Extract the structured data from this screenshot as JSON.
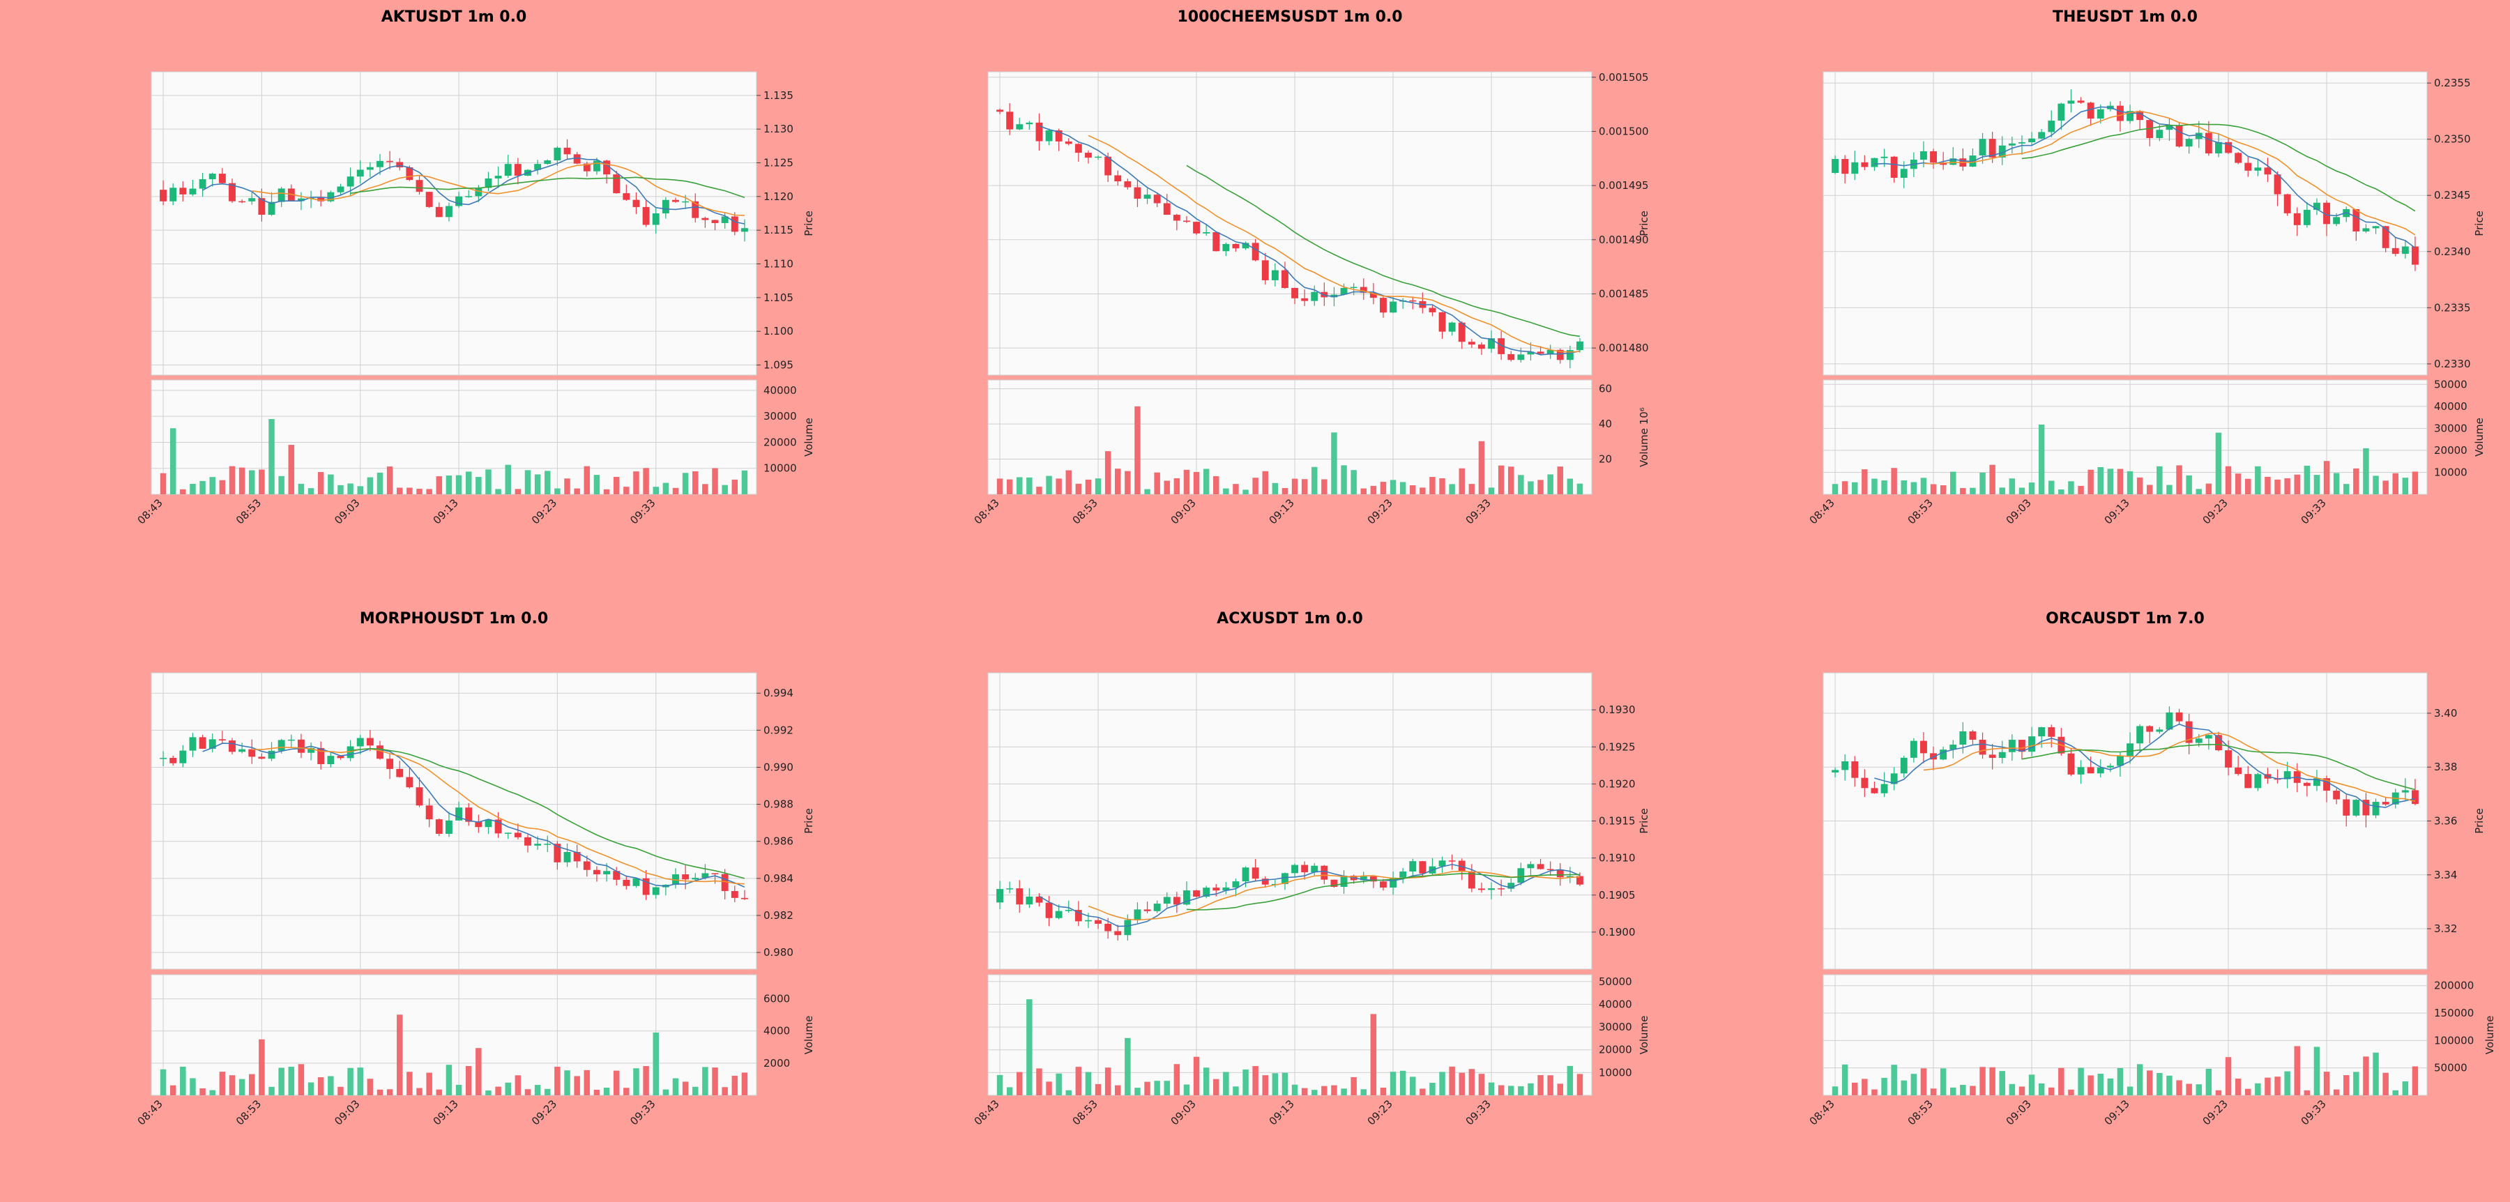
{
  "colors": {
    "background": "#ff9f9a",
    "panel": "#fafafa",
    "up": "#1db77a",
    "down": "#ec3b45",
    "vol_up": "#4cc997",
    "vol_down": "#f06a6f",
    "ma_short": "#3d7ab8",
    "ma_mid": "#f0902c",
    "ma_long": "#3aa03a"
  },
  "labels": {
    "price": "Price",
    "volume": "Volume"
  },
  "chart_data": [
    {
      "type": "candlestick",
      "title": "AKTUSDT 1m 0.0",
      "ylabel": "Price",
      "vol_label": "Volume",
      "ylim": [
        1.0935,
        1.1385
      ],
      "yticks": [
        "1.095",
        "1.100",
        "1.105",
        "1.110",
        "1.115",
        "1.120",
        "1.125",
        "1.130",
        "1.135"
      ],
      "vol_max": 44000,
      "vol_ticks": [
        "10000",
        "20000",
        "30000",
        "40000"
      ],
      "xticks": [
        "08:43",
        "08:53",
        "09:03",
        "09:13",
        "09:23",
        "09:33"
      ],
      "start": 1.121,
      "drift": -0.018,
      "vol": 0.0025,
      "seed": 3
    },
    {
      "type": "candlestick",
      "title": "1000CHEEMSUSDT 1m 0.0",
      "ylabel": "Price",
      "vol_label": "Volume  10⁶",
      "ylim": [
        0.0014775,
        0.0015055
      ],
      "yticks": [
        "0.001480",
        "0.001485",
        "0.001490",
        "0.001495",
        "0.001500",
        "0.001505"
      ],
      "vol_max": 65,
      "vol_ticks": [
        "20",
        "40",
        "60"
      ],
      "xticks": [
        "08:43",
        "08:53",
        "09:03",
        "09:13",
        "09:23",
        "09:33"
      ],
      "start": 0.001502,
      "drift": -2.2e-05,
      "vol": 1.5e-06,
      "seed": 7
    },
    {
      "type": "candlestick",
      "title": "THEUSDT 1m 0.0",
      "ylabel": "Price",
      "vol_label": "Volume",
      "ylim": [
        0.2329,
        0.2356
      ],
      "yticks": [
        "0.2330",
        "0.2335",
        "0.2340",
        "0.2345",
        "0.2350",
        "0.2355"
      ],
      "vol_max": 52000,
      "vol_ticks": [
        "10000",
        "20000",
        "30000",
        "40000",
        "50000"
      ],
      "xticks": [
        "08:43",
        "08:53",
        "09:03",
        "09:13",
        "09:23",
        "09:33"
      ],
      "start": 0.2347,
      "drift": -0.0013,
      "vol": 0.00018,
      "seed": 11
    },
    {
      "type": "candlestick",
      "title": "MORPHOUSDT 1m 0.0",
      "ylabel": "Price",
      "vol_label": "Volume",
      "ylim": [
        0.9791,
        0.9951
      ],
      "yticks": [
        "0.980",
        "0.982",
        "0.984",
        "0.986",
        "0.988",
        "0.990",
        "0.992",
        "0.994"
      ],
      "vol_max": 7500,
      "vol_ticks": [
        "2000",
        "4000",
        "6000"
      ],
      "xticks": [
        "08:43",
        "08:53",
        "09:03",
        "09:13",
        "09:23",
        "09:33"
      ],
      "start": 0.9905,
      "drift": -0.0095,
      "vol": 0.0009,
      "seed": 19
    },
    {
      "type": "candlestick",
      "title": "ACXUSDT 1m 0.0",
      "ylabel": "Price",
      "vol_label": "Volume",
      "ylim": [
        0.1895,
        0.1935
      ],
      "yticks": [
        "0.1900",
        "0.1905",
        "0.1910",
        "0.1915",
        "0.1920",
        "0.1925",
        "0.1930"
      ],
      "vol_max": 53000,
      "vol_ticks": [
        "10000",
        "20000",
        "30000",
        "40000",
        "50000"
      ],
      "xticks": [
        "08:43",
        "08:53",
        "09:03",
        "09:13",
        "09:23",
        "09:33"
      ],
      "start": 0.1904,
      "drift": -0.0006,
      "vol": 0.00022,
      "seed": 23
    },
    {
      "type": "candlestick",
      "title": "ORCAUSDT 1m 7.0",
      "ylabel": "Price",
      "vol_label": "Volume",
      "ylim": [
        3.305,
        3.415
      ],
      "yticks": [
        "3.32",
        "3.34",
        "3.36",
        "3.38",
        "3.40"
      ],
      "vol_max": 220000,
      "vol_ticks": [
        "50000",
        "100000",
        "150000",
        "200000"
      ],
      "xticks": [
        "08:43",
        "08:53",
        "09:03",
        "09:13",
        "09:23",
        "09:33"
      ],
      "start": 3.378,
      "drift": -0.055,
      "vol": 0.0075,
      "seed": 31
    }
  ]
}
